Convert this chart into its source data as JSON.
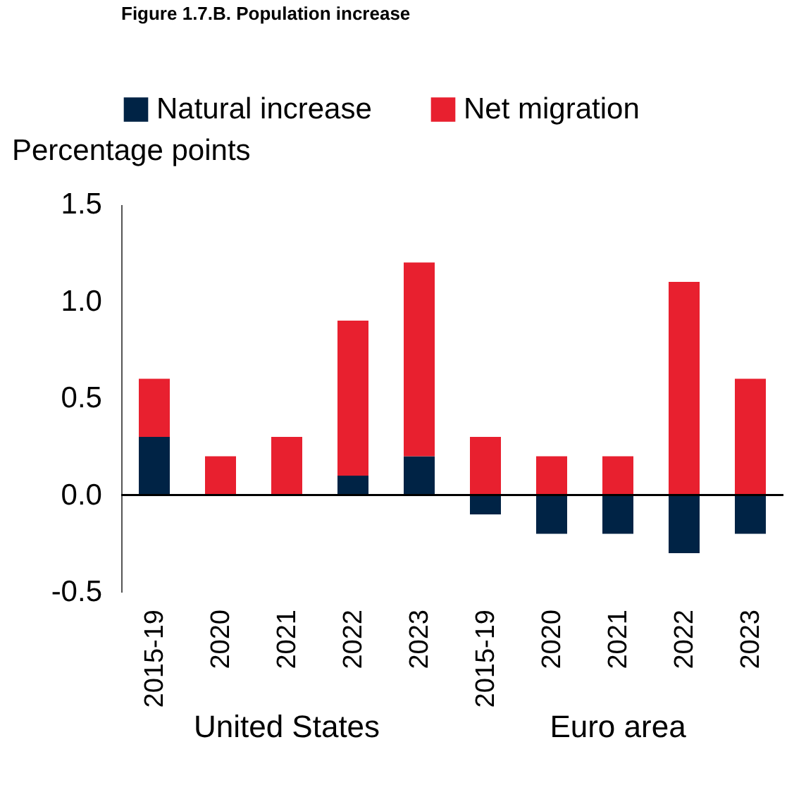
{
  "chart_data": {
    "type": "bar",
    "title": "Figure 1.7.B. Population increase",
    "ylabel": "Percentage points",
    "categories": [
      "2015-19",
      "2020",
      "2021",
      "2022",
      "2023",
      "2015-19",
      "2020",
      "2021",
      "2022",
      "2023"
    ],
    "series": [
      {
        "name": "Natural increase",
        "color": "#002345",
        "values": [
          0.3,
          0,
          0,
          0.1,
          0.2,
          -0.1,
          -0.2,
          -0.2,
          -0.3,
          -0.2
        ]
      },
      {
        "name": "Net migration",
        "color": "#e8202f",
        "values": [
          0.3,
          0.2,
          0.3,
          0.8,
          1.0,
          0.3,
          0.2,
          0.2,
          1.1,
          0.6
        ]
      }
    ],
    "stacked": true,
    "ylim": [
      -0.5,
      1.5
    ],
    "yticks": [
      {
        "value": -0.5,
        "label": "-0.5"
      },
      {
        "value": 0,
        "label": "0.0"
      },
      {
        "value": 0.5,
        "label": "0.5"
      },
      {
        "value": 1,
        "label": "1.0"
      },
      {
        "value": 1.5,
        "label": "1.5"
      }
    ],
    "ref_lines": [
      {
        "axis": "y",
        "value": 0,
        "color": "#000000"
      }
    ],
    "annotations": [
      "United States",
      "Euro area"
    ],
    "legend": "top",
    "grid": false
  }
}
